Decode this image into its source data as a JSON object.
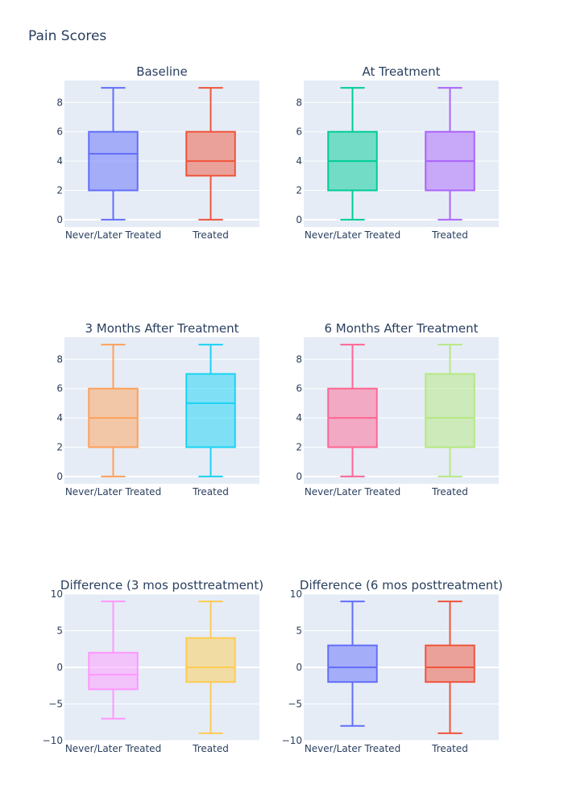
{
  "figure": {
    "title": "Pain Scores"
  },
  "style": {
    "plot_bg": "#E5ECF6",
    "grid": "#ffffff",
    "text": "#2a3f5f"
  },
  "chart_data": [
    {
      "type": "box",
      "title": "Baseline",
      "categories": [
        "Never/Later Treated",
        "Treated"
      ],
      "ylim": [
        -0.5,
        9.5
      ],
      "yticks": [
        0,
        2,
        4,
        6,
        8
      ],
      "ytick_labels": [
        "0",
        "2",
        "4",
        "6",
        "8"
      ],
      "series": [
        {
          "color": "#636efa",
          "min": 0,
          "q1": 2,
          "median": 4.5,
          "q3": 6,
          "max": 9
        },
        {
          "color": "#EF553B",
          "min": 0,
          "q1": 3,
          "median": 4,
          "q3": 6,
          "max": 9
        }
      ]
    },
    {
      "type": "box",
      "title": "At Treatment",
      "categories": [
        "Never/Later Treated",
        "Treated"
      ],
      "ylim": [
        -0.5,
        9.5
      ],
      "yticks": [
        0,
        2,
        4,
        6,
        8
      ],
      "ytick_labels": [
        "0",
        "2",
        "4",
        "6",
        "8"
      ],
      "series": [
        {
          "color": "#00cc96",
          "min": 0,
          "q1": 2,
          "median": 4,
          "q3": 6,
          "max": 9
        },
        {
          "color": "#ab63fa",
          "min": 0,
          "q1": 2,
          "median": 4,
          "q3": 6,
          "max": 9
        }
      ]
    },
    {
      "type": "box",
      "title": "3 Months After Treatment",
      "categories": [
        "Never/Later Treated",
        "Treated"
      ],
      "ylim": [
        -0.5,
        9.5
      ],
      "yticks": [
        0,
        2,
        4,
        6,
        8
      ],
      "ytick_labels": [
        "0",
        "2",
        "4",
        "6",
        "8"
      ],
      "series": [
        {
          "color": "#FFA15A",
          "min": 0,
          "q1": 2,
          "median": 4,
          "q3": 6,
          "max": 9
        },
        {
          "color": "#19d3f3",
          "min": 0,
          "q1": 2,
          "median": 5,
          "q3": 7,
          "max": 9
        }
      ]
    },
    {
      "type": "box",
      "title": "6 Months After Treatment",
      "categories": [
        "Never/Later Treated",
        "Treated"
      ],
      "ylim": [
        -0.5,
        9.5
      ],
      "yticks": [
        0,
        2,
        4,
        6,
        8
      ],
      "ytick_labels": [
        "0",
        "2",
        "4",
        "6",
        "8"
      ],
      "series": [
        {
          "color": "#FF6692",
          "min": 0,
          "q1": 2,
          "median": 4,
          "q3": 6,
          "max": 9
        },
        {
          "color": "#B6E880",
          "min": 0,
          "q1": 2,
          "median": 4,
          "q3": 7,
          "max": 9
        }
      ]
    },
    {
      "type": "box",
      "title": "Difference (3 mos posttreatment)",
      "categories": [
        "Never/Later Treated",
        "Treated"
      ],
      "ylim": [
        -10,
        10
      ],
      "yticks": [
        -10,
        -5,
        0,
        5,
        10
      ],
      "ytick_labels": [
        "−10",
        "−5",
        "0",
        "5",
        "10"
      ],
      "series": [
        {
          "color": "#FF97FF",
          "min": -7,
          "q1": -3,
          "median": -1,
          "q3": 2,
          "max": 9
        },
        {
          "color": "#FECB52",
          "min": -9,
          "q1": -2,
          "median": 0,
          "q3": 4,
          "max": 9
        }
      ]
    },
    {
      "type": "box",
      "title": "Difference (6 mos posttreatment)",
      "categories": [
        "Never/Later Treated",
        "Treated"
      ],
      "ylim": [
        -10,
        10
      ],
      "yticks": [
        -10,
        -5,
        0,
        5,
        10
      ],
      "ytick_labels": [
        "−10",
        "−5",
        "0",
        "5",
        "10"
      ],
      "series": [
        {
          "color": "#636efa",
          "min": -8,
          "q1": -2,
          "median": 0,
          "q3": 3,
          "max": 9
        },
        {
          "color": "#EF553B",
          "min": -9,
          "q1": -2,
          "median": 0,
          "q3": 3,
          "max": 9
        }
      ]
    }
  ]
}
